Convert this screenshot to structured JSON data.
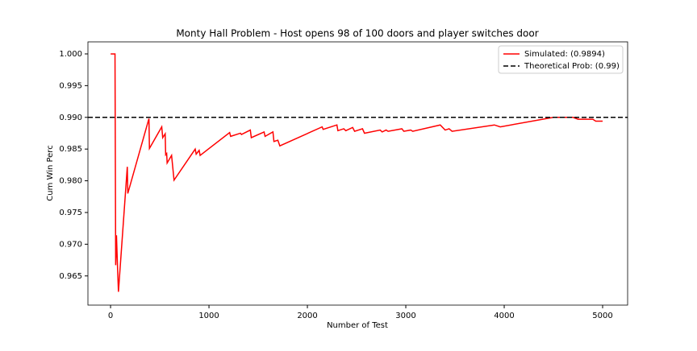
{
  "chart_data": {
    "type": "line",
    "title": "Monty Hall Problem - Host opens 98 of 100 doors and player switches door",
    "x_label": "Number of Test",
    "y_label": "Cum Win Perc",
    "xlim": [
      -230,
      5254
    ],
    "xticks": [
      0,
      1000,
      2000,
      3000,
      4000,
      5000
    ],
    "ylim": [
      0.9604,
      1.0019
    ],
    "yticks": [
      {
        "value": 0.965,
        "label": "0.965"
      },
      {
        "value": 0.97,
        "label": "0.970"
      },
      {
        "value": 0.975,
        "label": "0.975"
      },
      {
        "value": 0.98,
        "label": "0.980"
      },
      {
        "value": 0.985,
        "label": "0.985"
      },
      {
        "value": 0.99,
        "label": "0.990"
      },
      {
        "value": 0.995,
        "label": "0.995"
      },
      {
        "value": 1,
        "label": "1.000"
      }
    ],
    "legend": "upper right",
    "series": [
      {
        "name": "Simulated: (0.9894)",
        "color": "#ff0000",
        "style": "solid",
        "x": [
          1,
          45,
          52,
          60,
          70,
          80,
          170,
          175,
          390,
          395,
          520,
          530,
          555,
          560,
          570,
          575,
          620,
          645,
          860,
          870,
          900,
          910,
          1210,
          1220,
          1320,
          1330,
          1420,
          1430,
          1560,
          1570,
          1650,
          1660,
          1700,
          1720,
          2150,
          2160,
          2300,
          2310,
          2370,
          2390,
          2460,
          2480,
          2560,
          2580,
          2740,
          2760,
          2800,
          2820,
          2960,
          2980,
          3050,
          3070,
          3350,
          3400,
          3440,
          3470,
          3900,
          3960,
          4500,
          4700,
          4750,
          4900,
          4930,
          5000
        ],
        "values": [
          1,
          1,
          0.9667,
          0.9714,
          0.9667,
          0.9625,
          0.9822,
          0.978,
          0.9898,
          0.9851,
          0.9885,
          0.9868,
          0.9874,
          0.9841,
          0.9843,
          0.9828,
          0.984,
          0.9801,
          0.985,
          0.9842,
          0.9848,
          0.984,
          0.9876,
          0.987,
          0.9875,
          0.9873,
          0.988,
          0.9868,
          0.9877,
          0.987,
          0.9877,
          0.9862,
          0.9864,
          0.9855,
          0.9885,
          0.9881,
          0.9888,
          0.9879,
          0.9882,
          0.9879,
          0.9884,
          0.9878,
          0.9882,
          0.9875,
          0.988,
          0.9877,
          0.988,
          0.9878,
          0.9882,
          0.9878,
          0.988,
          0.9878,
          0.9888,
          0.988,
          0.9882,
          0.9878,
          0.9888,
          0.9885,
          0.99,
          0.99,
          0.9897,
          0.9897,
          0.9894,
          0.9894
        ]
      },
      {
        "name": "Theoretical Prob: (0.99)",
        "color": "#000000",
        "style": "dashed",
        "hline": 0.99
      }
    ]
  }
}
